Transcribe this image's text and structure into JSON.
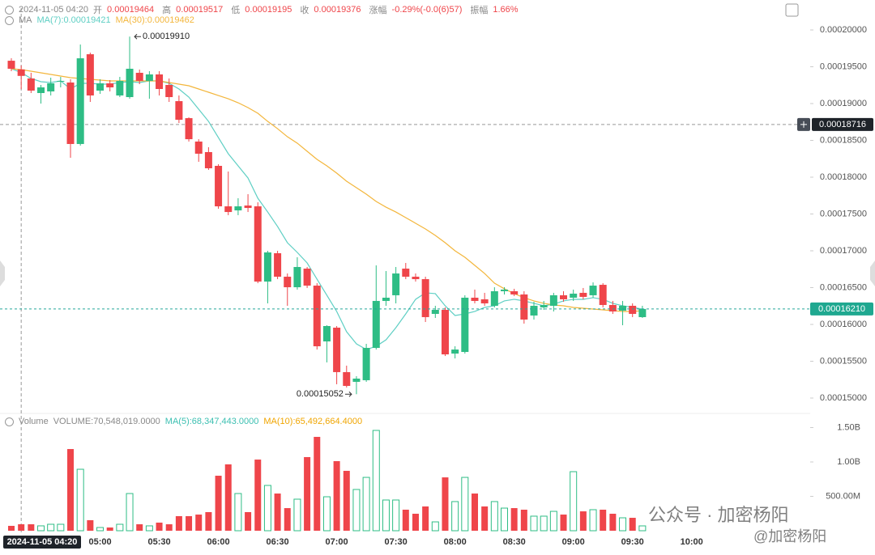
{
  "header": {
    "time": "2024-11-05 04:20",
    "fields": [
      {
        "label": "开",
        "value": "0.00019464"
      },
      {
        "label": "高",
        "value": "0.00019517"
      },
      {
        "label": "低",
        "value": "0.00019195"
      },
      {
        "label": "收",
        "value": "0.00019376"
      },
      {
        "label": "涨幅",
        "value": "-0.29%(-0.0(6)57)"
      },
      {
        "label": "振幅",
        "value": "1.66%"
      }
    ]
  },
  "watermark": [
    "公众号 · 加密杨阳",
    "@加密杨阳"
  ],
  "chart_data": {
    "type": "candlestick",
    "up_color": "#2ebd85",
    "down_color": "#ef454a",
    "categories": [
      null,
      "2024-11-05 04:20",
      null,
      null,
      null,
      null,
      null,
      null,
      null,
      "05:00",
      null,
      null,
      null,
      null,
      null,
      "05:30",
      null,
      null,
      null,
      null,
      null,
      "06:00",
      null,
      null,
      null,
      null,
      null,
      "06:30",
      null,
      null,
      null,
      null,
      null,
      "07:00",
      null,
      null,
      null,
      null,
      null,
      "07:30",
      null,
      null,
      null,
      null,
      null,
      "08:00",
      null,
      null,
      null,
      null,
      null,
      "08:30",
      null,
      null,
      null,
      null,
      null,
      "09:00",
      null,
      null,
      null,
      null,
      null,
      "09:30",
      null,
      null,
      null,
      null,
      null,
      "10:00"
    ],
    "open": [
      0.00019582,
      0.00019464,
      0.00019341,
      0.00019143,
      0.00019165,
      0.00019297,
      0.00019286,
      0.00018451,
      0.0001967,
      0.00019176,
      0.00019275,
      0.0001911,
      0.00019088,
      0.00019418,
      0.00019308,
      0.00019396,
      0.00019253,
      0.00019033,
      0.00018802,
      0.00018484,
      0.00018341,
      0.00018154,
      0.00017604,
      0.00017549,
      0.00017615,
      0.00017604,
      0.00016582,
      0.00016967,
      0.00016648,
      0.00016505,
      0.00016758,
      0.00016527,
      0.00015769,
      0.00015956,
      0.00015352,
      0.0001522,
      0.00015242,
      0.00015681,
      0.00016319,
      0.00016396,
      0.00016758,
      0.00016648,
      0.00016615,
      0.00016143,
      0.00016198,
      0.00015604,
      0.00015626,
      0.00016363,
      0.00016341,
      0.00016253,
      0.00016451,
      0.00016451,
      0.00016407,
      0.00016121,
      0.00016231,
      0.00016253,
      0.00016396,
      0.00016363,
      0.00016429,
      0.00016396,
      0.00016538,
      0.00016264,
      0.00016187,
      0.00016253,
      0.00016099,
      null,
      null,
      null,
      null,
      null
    ],
    "high": [
      0.00019615,
      0.00019517,
      0.00019418,
      0.00019253,
      0.00019352,
      0.00019363,
      0.0001933,
      0.00019802,
      0.00019692,
      0.0001933,
      0.00019319,
      0.00019363,
      0.0001991,
      0.00019462,
      0.0001944,
      0.0001944,
      0.00019341,
      0.0001911,
      0.00018813,
      0.00018516,
      0.00018407,
      0.00018176,
      0.00018077,
      0.00017714,
      0.00017769,
      0.00017659,
      0.00017,
      0.00017,
      0.00016692,
      0.00016912,
      0.0001678,
      0.0001656,
      0.00015989,
      0.00015978,
      0.0001544,
      0.00015297,
      0.00015736,
      0.00016802,
      0.00016725,
      0.0001678,
      0.00016835,
      0.00016692,
      0.00016648,
      0.00016253,
      0.00016231,
      0.00015703,
      0.00016396,
      0.00016473,
      0.00016429,
      0.00016505,
      0.00016505,
      0.00016484,
      0.00016451,
      0.00016308,
      0.00016319,
      0.00016429,
      0.00016451,
      0.00016473,
      0.00016495,
      0.00016571,
      0.0001656,
      0.00016319,
      0.00016319,
      0.00016286,
      0.00016253,
      null,
      null,
      null,
      null,
      null
    ],
    "low": [
      0.0001944,
      0.00019195,
      0.00019143,
      0.00019,
      0.0001911,
      0.0001922,
      0.00018264,
      0.00018429,
      0.00019022,
      0.00019132,
      0.00019165,
      0.00019088,
      0.00019066,
      0.00019264,
      0.00019066,
      0.0001911,
      0.00019022,
      0.00018736,
      0.00018484,
      0.00018209,
      0.00018099,
      0.00017571,
      0.00017484,
      0.00017484,
      0.00017527,
      0.0001656,
      0.00016286,
      0.00016615,
      0.00016253,
      0.00016473,
      0.00016495,
      0.00015659,
      0.00015484,
      0.00015187,
      0.00015143,
      0.00015052,
      0.0001522,
      0.00015659,
      0.00016253,
      0.00016286,
      0.00016615,
      0.00016582,
      0.00016033,
      0.00016088,
      0.00015571,
      0.00015538,
      0.00015604,
      0.00016286,
      0.00016253,
      0.00016231,
      0.00016407,
      0.00016385,
      0.00016011,
      0.00016066,
      0.00016198,
      0.00016176,
      0.00016308,
      0.00016319,
      0.00016341,
      0.00016363,
      0.00016231,
      0.00016143,
      0.00015989,
      0.00016099,
      0.00016088,
      null,
      null,
      null,
      null,
      null
    ],
    "close": [
      0.00019473,
      0.00019376,
      0.00019176,
      0.0001922,
      0.00019275,
      0.00019308,
      0.00018451,
      0.00019615,
      0.0001911,
      0.00019275,
      0.0001922,
      0.00019308,
      0.00019473,
      0.00019308,
      0.00019396,
      0.00019198,
      0.00019088,
      0.0001878,
      0.00018516,
      0.00018319,
      0.00018121,
      0.00017604,
      0.00017527,
      0.00017604,
      0.00017582,
      0.00016582,
      0.00016978,
      0.00016648,
      0.00016505,
      0.0001678,
      0.00016527,
      0.00015703,
      0.00015978,
      0.00015352,
      0.00015165,
      0.00015264,
      0.00015681,
      0.00016319,
      0.00016363,
      0.00016692,
      0.00016648,
      0.00016615,
      0.00016099,
      0.00016198,
      0.00015593,
      0.00015659,
      0.00016363,
      0.00016319,
      0.00016286,
      0.00016451,
      0.00016473,
      0.00016407,
      0.00016066,
      0.00016253,
      0.00016264,
      0.00016396,
      0.00016341,
      0.00016418,
      0.00016374,
      0.00016527,
      0.00016264,
      0.00016176,
      0.00016253,
      0.00016143,
      0.0001621,
      null,
      null,
      null,
      null,
      null
    ],
    "series": [
      {
        "name": "MA(7):0.00019421",
        "color": "#5fcfc4",
        "values": [
          0.00019473,
          0.00019421,
          0.00019341,
          0.00019297,
          0.00019286,
          0.00019308,
          0.00019198,
          0.00019275,
          0.00019275,
          0.00019264,
          0.00019264,
          0.00019286,
          0.00019297,
          0.00019286,
          0.00019308,
          0.00019308,
          0.00019275,
          0.00019198,
          0.00019088,
          0.00018923,
          0.00018758,
          0.00018538,
          0.00018319,
          0.00018154,
          0.00017989,
          0.00017714,
          0.00017527,
          0.0001733,
          0.0001711,
          0.00016978,
          0.00016835,
          0.00016615,
          0.00016396,
          0.00016176,
          0.00015901,
          0.00015736,
          0.00015659,
          0.00015703,
          0.00015791,
          0.00015956,
          0.00016143,
          0.00016341,
          0.00016429,
          0.00016418,
          0.00016253,
          0.00016121,
          0.00016143,
          0.00016176,
          0.00016231,
          0.00016253,
          0.00016319,
          0.00016341,
          0.00016319,
          0.00016286,
          0.00016253,
          0.00016275,
          0.00016319,
          0.00016341,
          0.00016341,
          0.00016363,
          0.00016341,
          0.00016286,
          0.00016253,
          0.00016231,
          0.00016209,
          null,
          null,
          null,
          null,
          null
        ]
      },
      {
        "name": "MA(30):0.00019462",
        "color": "#f3b63c",
        "values": [
          0.00019473,
          0.00019462,
          0.0001944,
          0.00019418,
          0.00019396,
          0.00019374,
          0.00019352,
          0.00019341,
          0.0001933,
          0.00019319,
          0.00019308,
          0.00019308,
          0.00019308,
          0.00019308,
          0.00019308,
          0.00019308,
          0.00019286,
          0.00019264,
          0.00019242,
          0.00019198,
          0.00019154,
          0.0001911,
          0.00019066,
          0.00019011,
          0.00018945,
          0.00018868,
          0.00018758,
          0.00018659,
          0.00018549,
          0.00018462,
          0.00018352,
          0.00018242,
          0.00018154,
          0.00018055,
          0.00017945,
          0.00017857,
          0.00017769,
          0.0001767,
          0.00017593,
          0.00017527,
          0.00017451,
          0.00017374,
          0.00017297,
          0.00017209,
          0.0001711,
          0.00017,
          0.00016912,
          0.00016802,
          0.00016692,
          0.0001656,
          0.00016484,
          0.00016418,
          0.00016363,
          0.00016319,
          0.00016286,
          0.00016264,
          0.00016253,
          0.00016231,
          0.0001622,
          0.00016209,
          0.00016198,
          0.00016187,
          0.00016176,
          0.00016176,
          0.00016187,
          null,
          null,
          null,
          null,
          null
        ]
      }
    ],
    "ma_label": "MA",
    "ylim": [
      0.00014824,
      0.00020297
    ],
    "yticks": [
      {
        "value": 0.00015,
        "label": "0.00015000"
      },
      {
        "value": 0.000155,
        "label": "0.00015500"
      },
      {
        "value": 0.00016,
        "label": "0.00016000"
      },
      {
        "value": 0.000165,
        "label": "0.00016500"
      },
      {
        "value": 0.00017,
        "label": "0.00017000"
      },
      {
        "value": 0.000175,
        "label": "0.00017500"
      },
      {
        "value": 0.00018,
        "label": "0.00018000"
      },
      {
        "value": 0.000185,
        "label": "0.00018500"
      },
      {
        "value": 0.00019,
        "label": "0.00019000"
      },
      {
        "value": 0.000195,
        "label": "0.00019500"
      },
      {
        "value": 0.0002,
        "label": "0.00020000"
      }
    ],
    "crosshair": {
      "x": "2024-11-05 04:20",
      "y": 0.00018716
    },
    "last_price": {
      "value": 0.0001621,
      "label": "0.00016210"
    },
    "annotations": [
      {
        "value": 0.0001991,
        "label": "0.00019910"
      },
      {
        "value": 0.00015052,
        "label": "0.00015052"
      }
    ],
    "volume": [
      71000000,
      94000000,
      94000000,
      71000000,
      94000000,
      94000000,
      1188000000,
      894000000,
      153000000,
      47000000,
      47000000,
      94000000,
      541000000,
      94000000,
      71000000,
      118000000,
      94000000,
      212000000,
      212000000,
      235000000,
      271000000,
      800000000,
      965000000,
      541000000,
      271000000,
      1035000000,
      659000000,
      541000000,
      329000000,
      459000000,
      1071000000,
      1365000000,
      494000000,
      1012000000,
      871000000,
      600000000,
      776000000,
      1459000000,
      447000000,
      447000000,
      306000000,
      247000000,
      353000000,
      129000000,
      776000000,
      424000000,
      776000000,
      541000000,
      353000000,
      424000000,
      329000000,
      329000000,
      306000000,
      212000000,
      212000000,
      282000000,
      235000000,
      859000000,
      282000000,
      306000000,
      306000000,
      247000000,
      188000000,
      188000000,
      70548019,
      null,
      null,
      null,
      null,
      null
    ],
    "volume_title": "Volume",
    "volume_legend": [
      {
        "text": "VOLUME:70,548,019.0000",
        "color": "#888888"
      },
      {
        "text": "MA(5):68,347,443.0000",
        "color": "#3bbfb1"
      },
      {
        "text": "MA(10):65,492,664.4000",
        "color": "#f0a500"
      }
    ],
    "vlim": [
      -47000000,
      1659000000
    ],
    "vticks": [
      {
        "value": 500000000,
        "label": "500.00M"
      },
      {
        "value": 1000000000,
        "label": "1.00B"
      },
      {
        "value": 1500000000,
        "label": "1.50B"
      }
    ]
  }
}
